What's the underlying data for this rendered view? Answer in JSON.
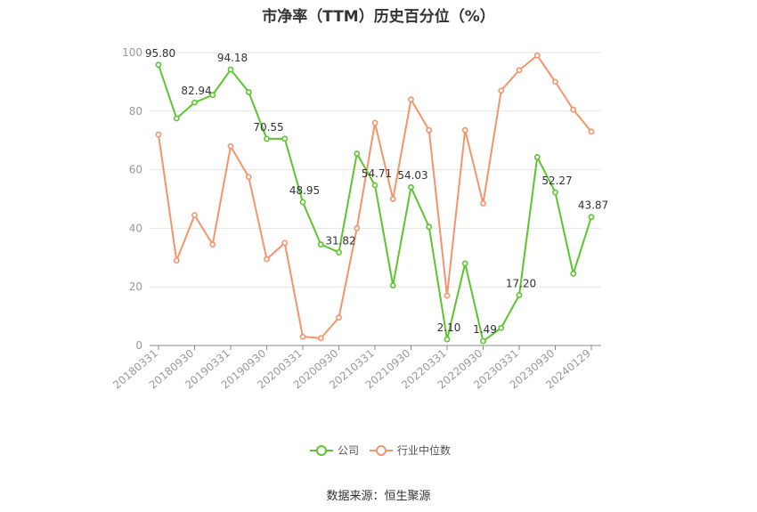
{
  "chart_data": {
    "type": "line",
    "title": "市净率（TTM）历史百分位（%）",
    "source": "数据来源：恒生聚源",
    "ylim": [
      0,
      100
    ],
    "y_ticks": [
      "0",
      "20",
      "40",
      "60",
      "80",
      "100"
    ],
    "x_tick_labels": [
      "20180331",
      "20180930",
      "20190331",
      "20190930",
      "20200331",
      "20200930",
      "20210331",
      "20210930",
      "20220331",
      "20220930",
      "20230331",
      "20230930",
      "20240129"
    ],
    "grid": true,
    "legend_position": "bottom",
    "series": [
      {
        "name": "公司",
        "color": "#5cc52e",
        "values": [
          95.8,
          77.5,
          82.94,
          85.5,
          94.18,
          86.5,
          70.55,
          70.6,
          48.95,
          34.5,
          31.82,
          65.5,
          54.71,
          20.5,
          54.03,
          40.5,
          2.1,
          28.0,
          1.49,
          6.0,
          17.2,
          64.3,
          52.27,
          24.5,
          43.87
        ],
        "labels": {
          "0": "95.80",
          "2": "82.94",
          "4": "94.18",
          "6": "70.55",
          "8": "48.95",
          "10": "31.82",
          "12": "54.71",
          "14": "54.03",
          "16": "2.10",
          "18": "1.49",
          "20": "17.20",
          "22": "52.27",
          "24": "43.87"
        }
      },
      {
        "name": "行业中位数",
        "color": "#f5936b",
        "values": [
          72.0,
          29.0,
          44.5,
          34.5,
          68.0,
          57.5,
          29.5,
          35.0,
          3.0,
          2.5,
          9.5,
          40.0,
          76.0,
          50.0,
          84.0,
          73.5,
          17.0,
          73.5,
          48.5,
          87.0,
          94.0,
          99.0,
          90.0,
          80.5,
          73.0
        ]
      }
    ]
  }
}
